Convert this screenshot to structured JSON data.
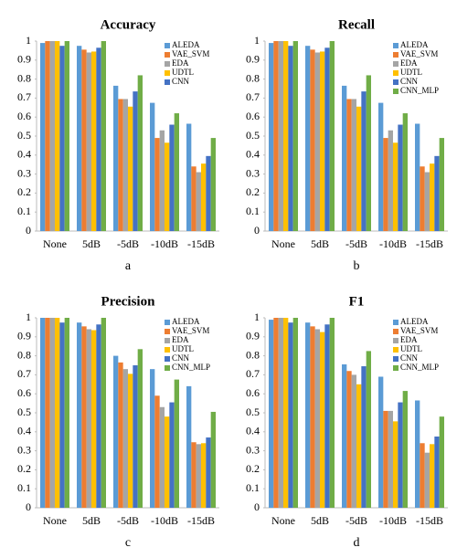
{
  "chart_data": [
    {
      "type": "bar",
      "title": "Accuracy",
      "caption": "a",
      "categories": [
        "None",
        "5dB",
        "-5dB",
        "-10dB",
        "-15dB"
      ],
      "series": [
        {
          "name": "ALEDA",
          "color": "#5b9bd5",
          "values": [
            0.99,
            0.975,
            0.765,
            0.675,
            0.565
          ]
        },
        {
          "name": "VAE_SVM",
          "color": "#ed7d31",
          "values": [
            1,
            0.955,
            0.695,
            0.49,
            0.34
          ]
        },
        {
          "name": "EDA",
          "color": "#a5a5a5",
          "values": [
            1,
            0.94,
            0.695,
            0.53,
            0.31
          ]
        },
        {
          "name": "UDTL",
          "color": "#ffc000",
          "values": [
            1,
            0.945,
            0.655,
            0.465,
            0.355
          ]
        },
        {
          "name": "CNN",
          "color": "#4472c4",
          "values": [
            0.975,
            0.965,
            0.735,
            0.56,
            0.395
          ]
        },
        {
          "color": "#70ad47",
          "values": [
            1,
            1,
            0.82,
            0.62,
            0.49
          ]
        }
      ],
      "ylim": [
        0,
        1
      ],
      "yticks": [
        0,
        0.1,
        0.2,
        0.3,
        0.4,
        0.5,
        0.6,
        0.7,
        0.8,
        0.9,
        1
      ],
      "legend": "upper right"
    },
    {
      "type": "bar",
      "title": "Recall",
      "caption": "b",
      "categories": [
        "None",
        "5dB",
        "-5dB",
        "-10dB",
        "-15dB"
      ],
      "series": [
        {
          "name": "ALEDA",
          "color": "#5b9bd5",
          "values": [
            0.99,
            0.975,
            0.765,
            0.675,
            0.565
          ]
        },
        {
          "name": "VAE_SVM",
          "color": "#ed7d31",
          "values": [
            1,
            0.955,
            0.695,
            0.49,
            0.34
          ]
        },
        {
          "name": "EDA",
          "color": "#a5a5a5",
          "values": [
            1,
            0.94,
            0.695,
            0.53,
            0.31
          ]
        },
        {
          "name": "UDTL",
          "color": "#ffc000",
          "values": [
            1,
            0.945,
            0.655,
            0.465,
            0.355
          ]
        },
        {
          "name": "CNN",
          "color": "#4472c4",
          "values": [
            0.975,
            0.965,
            0.735,
            0.56,
            0.395
          ]
        },
        {
          "name": "CNN_MLP",
          "color": "#70ad47",
          "values": [
            1,
            1,
            0.82,
            0.62,
            0.49
          ]
        }
      ],
      "ylim": [
        0,
        1
      ],
      "yticks": [
        0,
        0.1,
        0.2,
        0.3,
        0.4,
        0.5,
        0.6,
        0.7,
        0.8,
        0.9,
        1
      ],
      "legend": "upper right"
    },
    {
      "type": "bar",
      "title": "Precision",
      "caption": "c",
      "categories": [
        "None",
        "5dB",
        "-5dB",
        "-10dB",
        "-15dB"
      ],
      "series": [
        {
          "name": "ALEDA",
          "color": "#5b9bd5",
          "values": [
            1,
            0.975,
            0.8,
            0.73,
            0.64
          ]
        },
        {
          "name": "VAE_SVM",
          "color": "#ed7d31",
          "values": [
            1,
            0.955,
            0.765,
            0.59,
            0.345
          ]
        },
        {
          "name": "EDA",
          "color": "#a5a5a5",
          "values": [
            1,
            0.94,
            0.73,
            0.53,
            0.335
          ]
        },
        {
          "name": "UDTL",
          "color": "#ffc000",
          "values": [
            1,
            0.935,
            0.705,
            0.48,
            0.34
          ]
        },
        {
          "name": "CNN",
          "color": "#4472c4",
          "values": [
            0.975,
            0.965,
            0.75,
            0.555,
            0.37
          ]
        },
        {
          "name": "CNN_MLP",
          "color": "#70ad47",
          "values": [
            1,
            1,
            0.835,
            0.675,
            0.505
          ]
        }
      ],
      "ylim": [
        0,
        1
      ],
      "yticks": [
        0,
        0.1,
        0.2,
        0.3,
        0.4,
        0.5,
        0.6,
        0.7,
        0.8,
        0.9,
        1
      ],
      "legend": "upper right"
    },
    {
      "type": "bar",
      "title": "F1",
      "caption": "d",
      "categories": [
        "None",
        "5dB",
        "-5dB",
        "-10dB",
        "-15dB"
      ],
      "series": [
        {
          "name": "ALEDA",
          "color": "#5b9bd5",
          "values": [
            0.99,
            0.975,
            0.755,
            0.69,
            0.565
          ]
        },
        {
          "name": "VAE_SVM",
          "color": "#ed7d31",
          "values": [
            1,
            0.955,
            0.72,
            0.51,
            0.34
          ]
        },
        {
          "name": "EDA",
          "color": "#a5a5a5",
          "values": [
            1,
            0.94,
            0.7,
            0.51,
            0.29
          ]
        },
        {
          "name": "UDTL",
          "color": "#ffc000",
          "values": [
            1,
            0.925,
            0.65,
            0.455,
            0.335
          ]
        },
        {
          "name": "CNN",
          "color": "#4472c4",
          "values": [
            0.975,
            0.965,
            0.745,
            0.555,
            0.375
          ]
        },
        {
          "name": "CNN_MLP",
          "color": "#70ad47",
          "values": [
            1,
            1,
            0.825,
            0.615,
            0.48
          ]
        }
      ],
      "ylim": [
        0,
        1
      ],
      "yticks": [
        0,
        0.1,
        0.2,
        0.3,
        0.4,
        0.5,
        0.6,
        0.7,
        0.8,
        0.9,
        1
      ],
      "legend": "upper right"
    }
  ]
}
